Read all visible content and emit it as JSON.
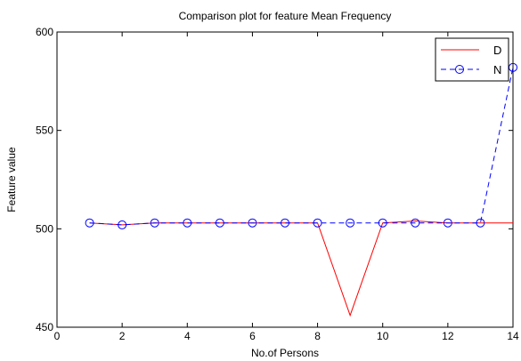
{
  "chart_data": {
    "type": "line",
    "title": "Comparison plot for feature Mean Frequency",
    "xlabel": "No.of Persons",
    "ylabel": "Feature value",
    "xlim": [
      0,
      14
    ],
    "ylim": [
      450,
      600
    ],
    "xticks": [
      0,
      2,
      4,
      6,
      8,
      10,
      12,
      14
    ],
    "yticks": [
      450,
      500,
      550,
      600
    ],
    "grid": false,
    "legend_position": "top-right",
    "series": [
      {
        "name": "D",
        "color": "#ff0000",
        "line_style": "solid",
        "marker": "none",
        "x": [
          1,
          2,
          3,
          4,
          5,
          6,
          7,
          8,
          9,
          10,
          11,
          12,
          13,
          14
        ],
        "values": [
          503,
          502,
          503,
          503,
          503,
          503,
          503,
          503,
          456,
          503,
          504,
          503,
          503,
          503
        ]
      },
      {
        "name": "N",
        "color": "#0000ff",
        "line_style": "dashed",
        "marker": "circle",
        "x": [
          1,
          2,
          3,
          4,
          5,
          6,
          7,
          8,
          9,
          10,
          11,
          12,
          13,
          14
        ],
        "values": [
          503,
          502,
          503,
          503,
          503,
          503,
          503,
          503,
          503,
          503,
          503,
          503,
          503,
          582
        ]
      }
    ]
  }
}
